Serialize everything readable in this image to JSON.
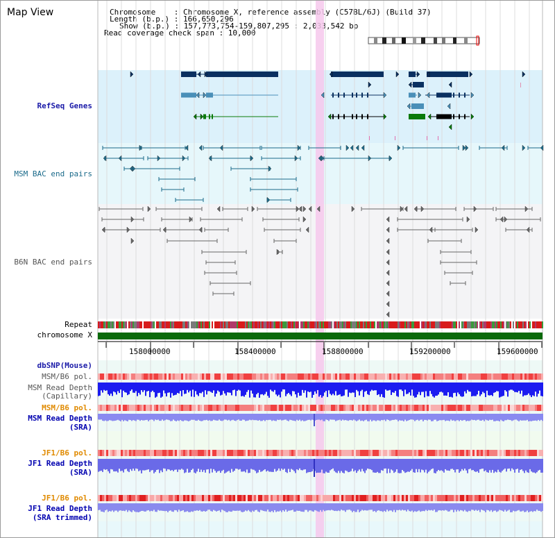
{
  "view_title": "Map View",
  "info": {
    "chromosome": "Chromosome    : Chromosome X, reference assembly (C57BL/6J) (Build 37)",
    "length": "Length (b.p.) : 166,650,296",
    "show": "Show (b.p.) : 157,773,754-159,807,295 : 2,033,542 bp",
    "coverage": "Read coverage check span : 10,000"
  },
  "tracks": {
    "refseq": "RefSeq Genes",
    "msm_bac": "MSM BAC end pairs",
    "b6n_bac": "B6N BAC end pairs",
    "repeat": "Repeat",
    "chromosome": "chromosome X",
    "dbsnp": "dbSNP(Mouse)",
    "msm_pol1": "MSM/B6 pol.",
    "msm_depth_cap_1": "MSM Read Depth",
    "msm_depth_cap_2": "(Capillary)",
    "msm_pol2": "MSM/B6 pol.",
    "msm_depth_sra_1": "MSM Read Depth",
    "msm_depth_sra_2": "(SRA)",
    "jf1_pol1": "JF1/B6 pol.",
    "jf1_depth_1": "JF1 Read Depth",
    "jf1_depth_2": "(SRA)",
    "jf1_pol2": "JF1/B6 pol.",
    "jf1_trim_1": "JF1 Read Depth",
    "jf1_trim_2": "(SRA trimmed)"
  },
  "axis": {
    "ticks": [
      "158000000",
      "158400000",
      "158800000",
      "159200000",
      "159600000"
    ]
  },
  "colors": {
    "refseq_bg": "#dcf1fb",
    "bac_bg": "#e6f7fb",
    "b6n_bg": "#f4f4f6",
    "highlight": "#f6c8ec",
    "chromosome": "#0a6a0a",
    "gene_navy": "#0a3060",
    "gene_steel": "#4a8fb8",
    "gene_green": "#0a7a0a",
    "depth_blue": "#1c1cf0",
    "depth_light": "#8a8af0"
  }
}
